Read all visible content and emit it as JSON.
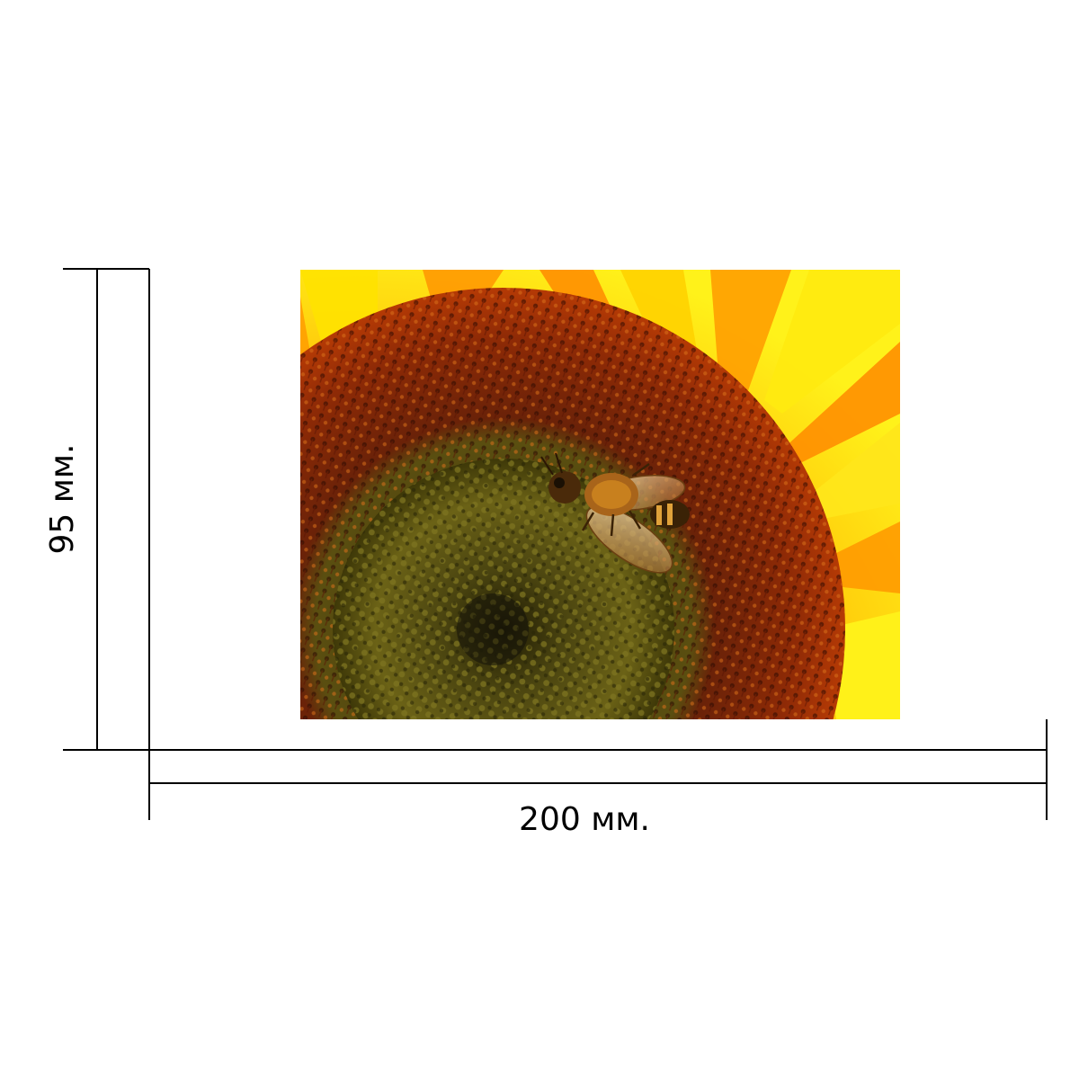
{
  "dimensions": {
    "width_label": "200 мм.",
    "height_label": "95 мм."
  },
  "photo": {
    "subject": "sunflower-with-bee",
    "colors": {
      "petal_yellow": "#ffe81a",
      "petal_orange": "#ff8a00",
      "floret_red": "#8a1e06",
      "disc_olive": "#4d4a10",
      "bee_amber": "#c8801e"
    }
  }
}
